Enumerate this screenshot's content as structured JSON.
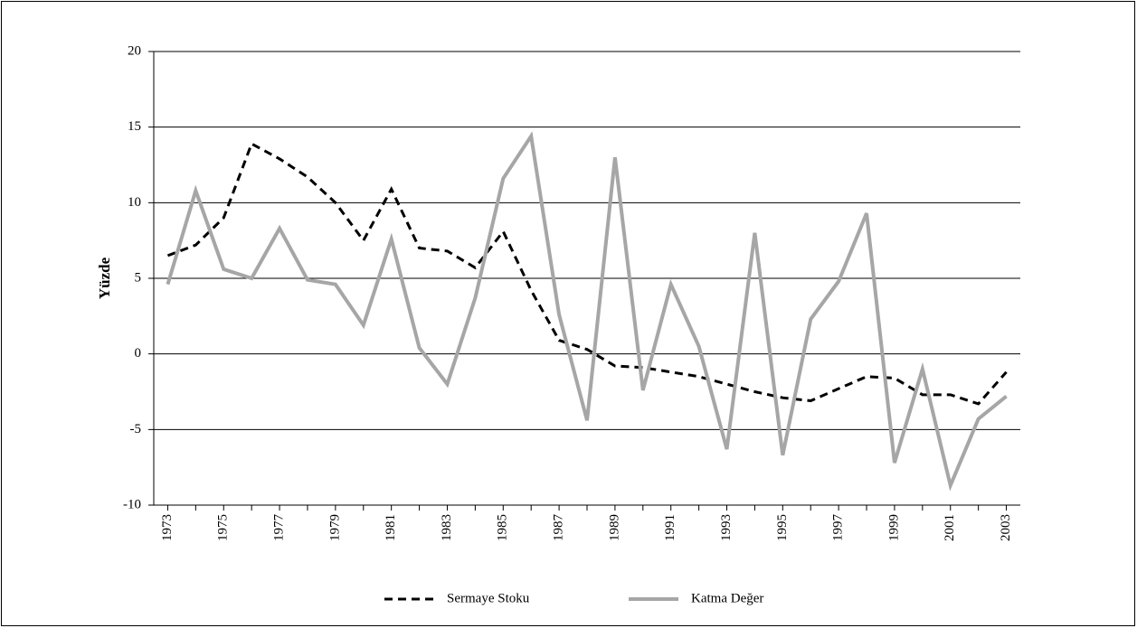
{
  "chart_data": {
    "type": "line",
    "y_label": "Yüzde",
    "x": [
      1973,
      1974,
      1975,
      1976,
      1977,
      1978,
      1979,
      1980,
      1981,
      1982,
      1983,
      1984,
      1985,
      1986,
      1987,
      1988,
      1989,
      1990,
      1991,
      1992,
      1993,
      1994,
      1995,
      1996,
      1997,
      1998,
      1999,
      2000,
      2001,
      2002,
      2003
    ],
    "xlim": [
      1972.5,
      2003.5
    ],
    "xticks": [
      1973,
      1975,
      1977,
      1979,
      1981,
      1983,
      1985,
      1987,
      1989,
      1991,
      1993,
      1995,
      1997,
      1999,
      2001,
      2003
    ],
    "ylim": [
      -10,
      20
    ],
    "yticks": [
      -10,
      -5,
      0,
      5,
      10,
      15,
      20
    ],
    "grid": true,
    "legend": "bottom",
    "series": [
      {
        "name": "Sermaye Stoku",
        "color": "#000000",
        "dashed": true,
        "values": [
          6.5,
          7.2,
          9.0,
          13.9,
          12.9,
          11.7,
          10.0,
          7.5,
          10.9,
          7.0,
          6.8,
          5.7,
          8.1,
          4.2,
          0.9,
          0.3,
          -0.8,
          -0.9,
          -1.2,
          -1.5,
          -2.0,
          -2.5,
          -2.9,
          -3.1,
          -2.3,
          -1.5,
          -1.6,
          -2.7,
          -2.7,
          -3.3,
          -1.2
        ]
      },
      {
        "name": "Katma Değer",
        "color": "#a6a6a6",
        "dashed": false,
        "values": [
          4.6,
          10.8,
          5.6,
          5.0,
          8.3,
          4.9,
          4.6,
          1.9,
          7.6,
          0.4,
          -2.0,
          3.7,
          11.6,
          14.4,
          2.6,
          -4.4,
          13.0,
          -2.4,
          4.6,
          0.5,
          -6.3,
          8.0,
          -6.7,
          2.3,
          4.8,
          9.3,
          -7.2,
          -1.0,
          -8.7,
          -4.3,
          -2.8
        ]
      }
    ]
  }
}
